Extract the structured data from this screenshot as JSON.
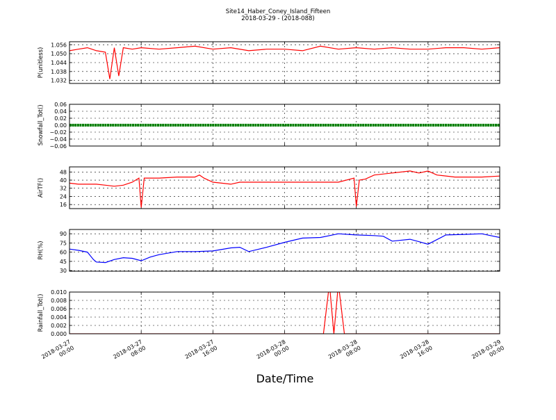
{
  "title": "Site14_Haber_Coney_Island_Fifteen",
  "subtitle": "2018-03-29 - (2018-088)",
  "xlabel": "Date/Time",
  "x_ticks": [
    "2018-03-27 00:00",
    "2018-03-27 08:00",
    "2018-03-27 16:00",
    "2018-03-28 00:00",
    "2018-03-28 08:00",
    "2018-03-28 16:00",
    "2018-03-29 00:00"
  ],
  "chart_data": [
    {
      "type": "line",
      "ylabel": "P(unitless)",
      "color": "#ff0000",
      "ylim": [
        1.03,
        1.058
      ],
      "yticks": [
        "1.056",
        "1.050",
        "1.044",
        "1.038",
        "1.032"
      ],
      "x": [
        "2018-03-27 00:00",
        "2018-03-27 01:00",
        "2018-03-27 02:00",
        "2018-03-27 03:00",
        "2018-03-27 04:00",
        "2018-03-27 04:30",
        "2018-03-27 05:00",
        "2018-03-27 05:30",
        "2018-03-27 06:00",
        "2018-03-27 07:00",
        "2018-03-27 08:00",
        "2018-03-27 10:00",
        "2018-03-27 12:00",
        "2018-03-27 14:00",
        "2018-03-27 16:00",
        "2018-03-27 18:00",
        "2018-03-27 20:00",
        "2018-03-27 22:00",
        "2018-03-28 00:00",
        "2018-03-28 02:00",
        "2018-03-28 04:00",
        "2018-03-28 06:00",
        "2018-03-28 08:00",
        "2018-03-28 10:00",
        "2018-03-28 12:00",
        "2018-03-28 14:00",
        "2018-03-28 16:00",
        "2018-03-28 18:00",
        "2018-03-28 20:00",
        "2018-03-28 22:00",
        "2018-03-29 00:00"
      ],
      "y": [
        1.052,
        1.053,
        1.054,
        1.052,
        1.051,
        1.033,
        1.054,
        1.035,
        1.054,
        1.053,
        1.054,
        1.053,
        1.054,
        1.055,
        1.053,
        1.054,
        1.052,
        1.053,
        1.053,
        1.052,
        1.055,
        1.053,
        1.054,
        1.053,
        1.054,
        1.053,
        1.053,
        1.054,
        1.054,
        1.053,
        1.054
      ]
    },
    {
      "type": "scatter",
      "ylabel": "Snowfall_Tot()",
      "color": "#008000",
      "ylim": [
        -0.06,
        0.06
      ],
      "yticks": [
        "0.06",
        "0.04",
        "0.02",
        "0.00",
        "−0.02",
        "−0.04",
        "−0.06"
      ],
      "x": [
        "2018-03-27 00:00",
        "2018-03-29 00:00"
      ],
      "y": [
        0.0,
        0.0
      ]
    },
    {
      "type": "line",
      "ylabel": "AirTF()",
      "color": "#ff0000",
      "ylim": [
        12,
        53
      ],
      "yticks": [
        "48",
        "40",
        "32",
        "24",
        "16"
      ],
      "x": [
        "2018-03-27 00:00",
        "2018-03-27 01:00",
        "2018-03-27 02:00",
        "2018-03-27 03:00",
        "2018-03-27 04:00",
        "2018-03-27 05:00",
        "2018-03-27 06:00",
        "2018-03-27 07:00",
        "2018-03-27 07:45",
        "2018-03-27 08:00",
        "2018-03-27 08:20",
        "2018-03-27 09:00",
        "2018-03-27 10:00",
        "2018-03-27 12:00",
        "2018-03-27 14:00",
        "2018-03-27 14:30",
        "2018-03-27 15:00",
        "2018-03-27 16:00",
        "2018-03-27 17:00",
        "2018-03-27 18:00",
        "2018-03-27 19:00",
        "2018-03-27 20:00",
        "2018-03-28 00:00",
        "2018-03-28 04:00",
        "2018-03-28 06:00",
        "2018-03-28 07:45",
        "2018-03-28 08:00",
        "2018-03-28 08:20",
        "2018-03-28 09:00",
        "2018-03-28 10:00",
        "2018-03-28 12:00",
        "2018-03-28 14:00",
        "2018-03-28 15:00",
        "2018-03-28 16:00",
        "2018-03-28 17:00",
        "2018-03-28 19:00",
        "2018-03-28 22:00",
        "2018-03-29 00:00"
      ],
      "y": [
        37,
        36,
        36,
        36,
        35,
        34,
        35,
        38,
        42,
        13,
        42,
        42,
        42,
        43,
        43,
        45,
        42,
        38,
        37,
        36,
        38,
        38,
        38,
        38,
        38,
        42,
        14,
        40,
        41,
        45,
        47,
        49,
        47,
        49,
        45,
        43,
        43,
        44
      ]
    },
    {
      "type": "line",
      "ylabel": "RH(%)",
      "color": "#0000ff",
      "ylim": [
        29,
        97
      ],
      "yticks": [
        "90",
        "75",
        "60",
        "45",
        "30"
      ],
      "x": [
        "2018-03-27 00:00",
        "2018-03-27 01:00",
        "2018-03-27 02:00",
        "2018-03-27 02:40",
        "2018-03-27 03:00",
        "2018-03-27 04:00",
        "2018-03-27 05:00",
        "2018-03-27 06:00",
        "2018-03-27 07:00",
        "2018-03-27 08:00",
        "2018-03-27 09:00",
        "2018-03-27 10:00",
        "2018-03-27 12:00",
        "2018-03-27 14:00",
        "2018-03-27 16:00",
        "2018-03-27 18:00",
        "2018-03-27 19:00",
        "2018-03-27 20:00",
        "2018-03-27 22:00",
        "2018-03-28 00:00",
        "2018-03-28 02:00",
        "2018-03-28 04:00",
        "2018-03-28 06:00",
        "2018-03-28 08:00",
        "2018-03-28 10:00",
        "2018-03-28 11:00",
        "2018-03-28 12:00",
        "2018-03-28 14:00",
        "2018-03-28 15:00",
        "2018-03-28 16:00",
        "2018-03-28 18:00",
        "2018-03-28 20:00",
        "2018-03-28 22:00",
        "2018-03-29 00:00"
      ],
      "y": [
        65,
        63,
        60,
        48,
        44,
        43,
        48,
        51,
        50,
        46,
        52,
        56,
        61,
        61,
        62,
        67,
        68,
        61,
        68,
        76,
        83,
        84,
        90,
        88,
        87,
        86,
        78,
        81,
        77,
        73,
        88,
        89,
        90,
        84
      ]
    },
    {
      "type": "line",
      "ylabel": "Rainfall_Tot()",
      "color": "#ff0000",
      "ylim": [
        0.0,
        0.01
      ],
      "yticks": [
        "0.010",
        "0.008",
        "0.006",
        "0.004",
        "0.002",
        "0.000"
      ],
      "x": [
        "2018-03-27 00:00",
        "2018-03-28 04:20",
        "2018-03-28 05:00",
        "2018-03-28 05:30",
        "2018-03-28 06:00",
        "2018-03-28 06:40",
        "2018-03-29 00:00"
      ],
      "y": [
        0.0,
        0.0,
        0.012,
        0.0,
        0.012,
        0.0,
        0.0
      ]
    }
  ]
}
